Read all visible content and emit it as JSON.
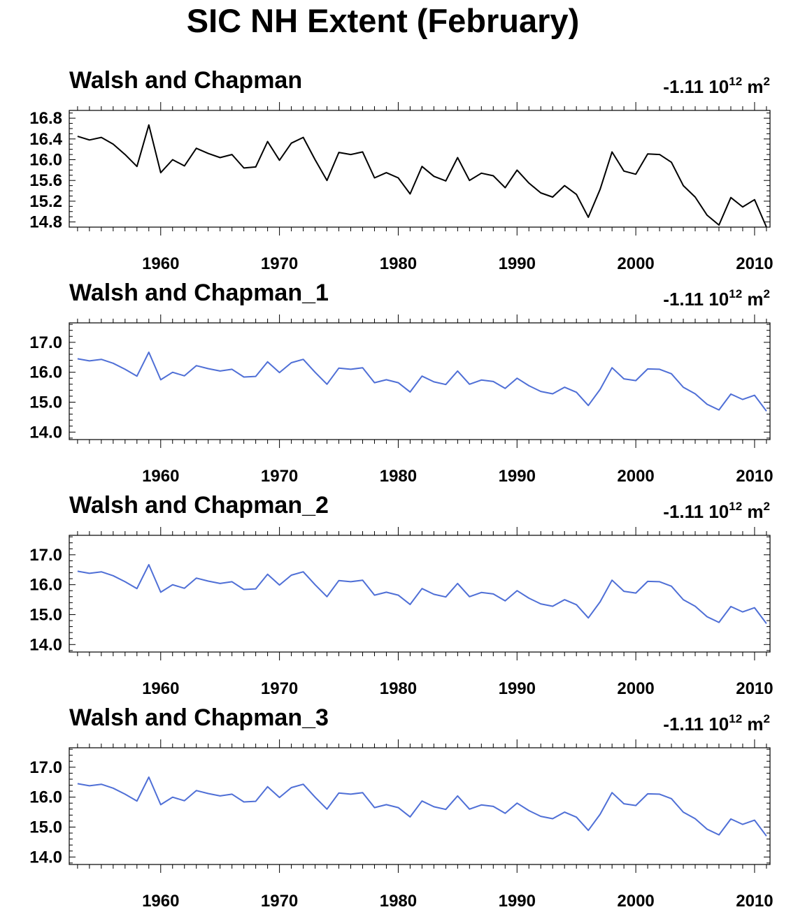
{
  "title": "SIC NH Extent (February)",
  "chart_data": [
    {
      "type": "line",
      "title": "Walsh and Chapman",
      "annotation": {
        "value": "-1.11 10",
        "exponent": "12",
        "unit": " m",
        "unit_exponent": "2"
      },
      "color": "#000000",
      "x_start": 1953,
      "xlim": [
        1952.3,
        2011.3
      ],
      "ylim": [
        14.7,
        16.95
      ],
      "yticks": [
        14.8,
        15.2,
        15.6,
        16.0,
        16.4,
        16.8
      ],
      "ytick_labels": [
        "14.8",
        "15.2",
        "15.6",
        "16.0",
        "16.4",
        "16.8"
      ],
      "yminor_step": 0.1,
      "xticks": [
        1960,
        1970,
        1980,
        1990,
        2000,
        2010
      ],
      "xtick_labels": [
        "1960",
        "1970",
        "1980",
        "1990",
        "2000",
        "2010"
      ],
      "xlabel": "",
      "ylabel": "",
      "grid": false,
      "values": [
        16.45,
        16.38,
        16.43,
        16.3,
        16.1,
        15.87,
        16.67,
        15.75,
        16.0,
        15.88,
        16.22,
        16.12,
        16.04,
        16.1,
        15.84,
        15.86,
        16.35,
        15.99,
        16.32,
        16.43,
        16.0,
        15.6,
        16.14,
        16.1,
        16.15,
        15.65,
        15.75,
        15.65,
        15.34,
        15.87,
        15.68,
        15.59,
        16.04,
        15.6,
        15.74,
        15.69,
        15.46,
        15.8,
        15.55,
        15.36,
        15.28,
        15.5,
        15.33,
        14.89,
        15.43,
        16.15,
        15.78,
        15.72,
        16.11,
        16.1,
        15.95,
        15.5,
        15.28,
        14.93,
        14.74,
        15.27,
        15.09,
        15.23,
        14.7
      ]
    },
    {
      "type": "line",
      "title": "Walsh and Chapman_1",
      "annotation": {
        "value": "-1.11 10",
        "exponent": "12",
        "unit": " m",
        "unit_exponent": "2"
      },
      "color": "#4f6fd6",
      "x_start": 1953,
      "xlim": [
        1952.3,
        2011.3
      ],
      "ylim": [
        13.75,
        17.65
      ],
      "yticks": [
        14.0,
        15.0,
        16.0,
        17.0
      ],
      "ytick_labels": [
        "14.0",
        "15.0",
        "16.0",
        "17.0"
      ],
      "yminor_step": 0.2,
      "xticks": [
        1960,
        1970,
        1980,
        1990,
        2000,
        2010
      ],
      "xtick_labels": [
        "1960",
        "1970",
        "1980",
        "1990",
        "2000",
        "2010"
      ],
      "xlabel": "",
      "ylabel": "",
      "grid": false,
      "values": [
        16.45,
        16.38,
        16.43,
        16.3,
        16.1,
        15.87,
        16.67,
        15.75,
        16.0,
        15.88,
        16.22,
        16.12,
        16.04,
        16.1,
        15.84,
        15.86,
        16.35,
        15.99,
        16.32,
        16.43,
        16.0,
        15.6,
        16.14,
        16.1,
        16.15,
        15.65,
        15.75,
        15.65,
        15.34,
        15.87,
        15.68,
        15.59,
        16.04,
        15.6,
        15.74,
        15.69,
        15.46,
        15.8,
        15.55,
        15.36,
        15.28,
        15.5,
        15.33,
        14.89,
        15.43,
        16.15,
        15.78,
        15.72,
        16.11,
        16.1,
        15.95,
        15.5,
        15.28,
        14.93,
        14.74,
        15.27,
        15.09,
        15.23,
        14.7
      ]
    },
    {
      "type": "line",
      "title": "Walsh and Chapman_2",
      "annotation": {
        "value": "-1.11 10",
        "exponent": "12",
        "unit": " m",
        "unit_exponent": "2"
      },
      "color": "#4f6fd6",
      "x_start": 1953,
      "xlim": [
        1952.3,
        2011.3
      ],
      "ylim": [
        13.75,
        17.65
      ],
      "yticks": [
        14.0,
        15.0,
        16.0,
        17.0
      ],
      "ytick_labels": [
        "14.0",
        "15.0",
        "16.0",
        "17.0"
      ],
      "yminor_step": 0.2,
      "xticks": [
        1960,
        1970,
        1980,
        1990,
        2000,
        2010
      ],
      "xtick_labels": [
        "1960",
        "1970",
        "1980",
        "1990",
        "2000",
        "2010"
      ],
      "xlabel": "",
      "ylabel": "",
      "grid": false,
      "values": [
        16.45,
        16.38,
        16.43,
        16.3,
        16.1,
        15.87,
        16.67,
        15.75,
        16.0,
        15.88,
        16.22,
        16.12,
        16.04,
        16.1,
        15.84,
        15.86,
        16.35,
        15.99,
        16.32,
        16.43,
        16.0,
        15.6,
        16.14,
        16.1,
        16.15,
        15.65,
        15.75,
        15.65,
        15.34,
        15.87,
        15.68,
        15.59,
        16.04,
        15.6,
        15.74,
        15.69,
        15.46,
        15.8,
        15.55,
        15.36,
        15.28,
        15.5,
        15.33,
        14.89,
        15.43,
        16.15,
        15.78,
        15.72,
        16.11,
        16.1,
        15.95,
        15.5,
        15.28,
        14.93,
        14.74,
        15.27,
        15.09,
        15.23,
        14.7
      ]
    },
    {
      "type": "line",
      "title": "Walsh and Chapman_3",
      "annotation": {
        "value": "-1.11 10",
        "exponent": "12",
        "unit": " m",
        "unit_exponent": "2"
      },
      "color": "#4f6fd6",
      "x_start": 1953,
      "xlim": [
        1952.3,
        2011.3
      ],
      "ylim": [
        13.75,
        17.65
      ],
      "yticks": [
        14.0,
        15.0,
        16.0,
        17.0
      ],
      "ytick_labels": [
        "14.0",
        "15.0",
        "16.0",
        "17.0"
      ],
      "yminor_step": 0.2,
      "xticks": [
        1960,
        1970,
        1980,
        1990,
        2000,
        2010
      ],
      "xtick_labels": [
        "1960",
        "1970",
        "1980",
        "1990",
        "2000",
        "2010"
      ],
      "xlabel": "",
      "ylabel": "",
      "grid": false,
      "values": [
        16.45,
        16.38,
        16.43,
        16.3,
        16.1,
        15.87,
        16.67,
        15.75,
        16.0,
        15.88,
        16.22,
        16.12,
        16.04,
        16.1,
        15.84,
        15.86,
        16.35,
        15.99,
        16.32,
        16.43,
        16.0,
        15.6,
        16.14,
        16.1,
        16.15,
        15.65,
        15.75,
        15.65,
        15.34,
        15.87,
        15.68,
        15.59,
        16.04,
        15.6,
        15.74,
        15.69,
        15.46,
        15.8,
        15.55,
        15.36,
        15.28,
        15.5,
        15.33,
        14.89,
        15.43,
        16.15,
        15.78,
        15.72,
        16.11,
        16.1,
        15.95,
        15.5,
        15.28,
        14.93,
        14.74,
        15.27,
        15.09,
        15.23,
        14.7
      ]
    }
  ]
}
